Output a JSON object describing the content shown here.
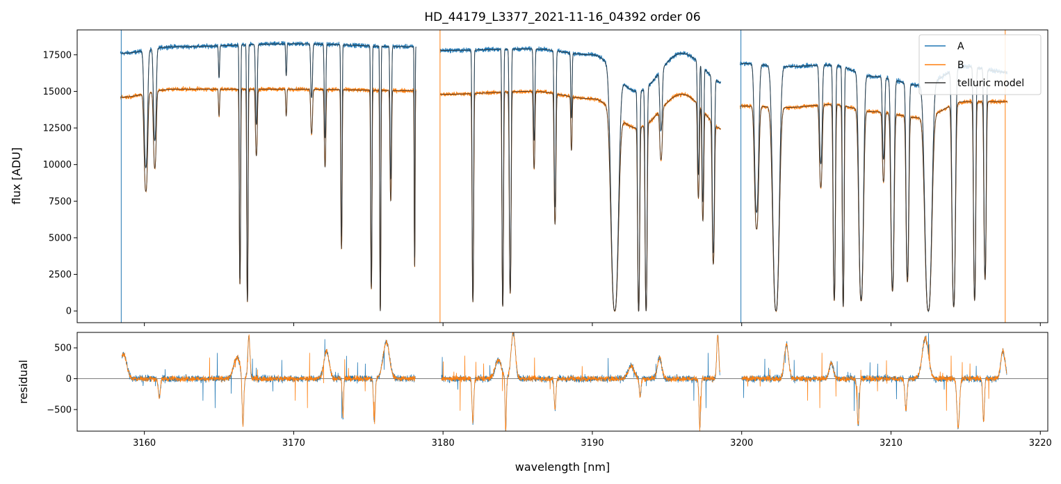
{
  "chart_data": {
    "type": "line",
    "title": "HD_44179_L3377_2021-11-16_04392  order 06",
    "xlabel": "wavelength [nm]",
    "xlim": [
      3155.5,
      3220.5
    ],
    "xticks": [
      3160,
      3170,
      3180,
      3190,
      3200,
      3210,
      3220
    ],
    "colors": {
      "A": "#1f77b4",
      "B": "#ff7f0e",
      "model": "#333333"
    },
    "legend": {
      "placement": "top-right",
      "entries": [
        "A",
        "B",
        "telluric model"
      ]
    },
    "panels": [
      {
        "name": "flux",
        "ylabel": "flux [ADU]",
        "ylim": [
          -800,
          19200
        ],
        "yticks": [
          0,
          2500,
          5000,
          7500,
          10000,
          12500,
          15000,
          17500
        ],
        "segments": [
          [
            3158.4,
            3178.2
          ],
          [
            3179.8,
            3198.6
          ],
          [
            3199.9,
            3217.8
          ]
        ],
        "continuum": {
          "A": [
            [
              3158.4,
              17600
            ],
            [
              3162,
              18050
            ],
            [
              3170,
              18250
            ],
            [
              3178,
              18050
            ],
            [
              3180,
              17800
            ],
            [
              3186,
              17900
            ],
            [
              3190,
              17500
            ],
            [
              3193,
              15000
            ],
            [
              3196,
              17600
            ],
            [
              3199,
              15500
            ],
            [
              3200,
              16900
            ],
            [
              3203,
              16700
            ],
            [
              3206,
              16800
            ],
            [
              3209,
              16000
            ],
            [
              3212,
              15400
            ],
            [
              3215,
              16700
            ],
            [
              3217.8,
              16300
            ]
          ],
          "B": [
            [
              3158.4,
              14600
            ],
            [
              3162,
              15150
            ],
            [
              3170,
              15150
            ],
            [
              3178,
              15050
            ],
            [
              3180,
              14800
            ],
            [
              3186,
              15000
            ],
            [
              3190,
              14500
            ],
            [
              3193,
              12500
            ],
            [
              3196,
              14800
            ],
            [
              3199,
              12300
            ],
            [
              3200,
              14000
            ],
            [
              3203,
              13900
            ],
            [
              3206,
              14100
            ],
            [
              3209,
              13600
            ],
            [
              3212,
              13200
            ],
            [
              3215,
              14300
            ],
            [
              3217.8,
              14300
            ]
          ]
        },
        "absorption_lines": [
          [
            3160.1,
            0.15,
            0.45
          ],
          [
            3160.7,
            0.12,
            0.35
          ],
          [
            3165.0,
            0.05,
            0.12
          ],
          [
            3166.4,
            0.06,
            0.88
          ],
          [
            3166.9,
            0.06,
            0.96
          ],
          [
            3167.5,
            0.08,
            0.3
          ],
          [
            3169.5,
            0.05,
            0.12
          ],
          [
            3171.2,
            0.08,
            0.2
          ],
          [
            3172.1,
            0.07,
            0.35
          ],
          [
            3173.2,
            0.06,
            0.72
          ],
          [
            3175.2,
            0.06,
            0.9
          ],
          [
            3175.8,
            0.05,
            1.02
          ],
          [
            3176.5,
            0.07,
            0.5
          ],
          [
            3178.1,
            0.04,
            0.8
          ],
          [
            3182.0,
            0.07,
            0.96
          ],
          [
            3184.0,
            0.07,
            0.98
          ],
          [
            3184.5,
            0.08,
            0.92
          ],
          [
            3186.1,
            0.07,
            0.35
          ],
          [
            3187.5,
            0.08,
            0.6
          ],
          [
            3188.6,
            0.06,
            0.25
          ],
          [
            3191.5,
            0.32,
            1.0
          ],
          [
            3193.1,
            0.09,
            1.0
          ],
          [
            3193.6,
            0.09,
            1.0
          ],
          [
            3194.6,
            0.11,
            0.25
          ],
          [
            3197.1,
            0.08,
            0.45
          ],
          [
            3197.4,
            0.08,
            0.55
          ],
          [
            3198.1,
            0.1,
            0.75
          ],
          [
            3201.0,
            0.18,
            0.6
          ],
          [
            3202.3,
            0.28,
            1.0
          ],
          [
            3205.3,
            0.12,
            0.4
          ],
          [
            3206.2,
            0.1,
            0.95
          ],
          [
            3206.8,
            0.08,
            0.98
          ],
          [
            3208.0,
            0.2,
            0.95
          ],
          [
            3209.5,
            0.1,
            0.35
          ],
          [
            3210.1,
            0.14,
            0.9
          ],
          [
            3211.1,
            0.12,
            0.85
          ],
          [
            3212.5,
            0.3,
            1.0
          ],
          [
            3214.2,
            0.15,
            0.98
          ],
          [
            3215.6,
            0.1,
            0.95
          ],
          [
            3216.3,
            0.1,
            0.85
          ]
        ],
        "spikes": [
          3158.45,
          3179.8,
          3199.95,
          3217.65
        ]
      },
      {
        "name": "residual",
        "ylabel": "residual",
        "ylim": [
          -850,
          750
        ],
        "yticks": [
          -500,
          0,
          500
        ],
        "zero_line": true,
        "features": [
          [
            3158.6,
            400,
            0.3
          ],
          [
            3161.0,
            -300,
            0.1
          ],
          [
            3166.2,
            350,
            0.3
          ],
          [
            3166.6,
            -800,
            0.08
          ],
          [
            3167.0,
            700,
            0.1
          ],
          [
            3172.2,
            450,
            0.25
          ],
          [
            3173.3,
            -600,
            0.06
          ],
          [
            3175.4,
            -700,
            0.08
          ],
          [
            3176.2,
            600,
            0.3
          ],
          [
            3182.0,
            -700,
            0.08
          ],
          [
            3183.7,
            300,
            0.3
          ],
          [
            3184.2,
            -850,
            0.06
          ],
          [
            3184.7,
            750,
            0.2
          ],
          [
            3187.5,
            -500,
            0.08
          ],
          [
            3192.6,
            200,
            0.3
          ],
          [
            3193.2,
            -300,
            0.08
          ],
          [
            3194.5,
            350,
            0.2
          ],
          [
            3197.2,
            -800,
            0.08
          ],
          [
            3198.4,
            700,
            0.1
          ],
          [
            3203.0,
            550,
            0.2
          ],
          [
            3206.0,
            250,
            0.2
          ],
          [
            3207.8,
            -750,
            0.1
          ],
          [
            3211.0,
            -500,
            0.1
          ],
          [
            3212.3,
            650,
            0.3
          ],
          [
            3214.5,
            -800,
            0.12
          ],
          [
            3216.2,
            -700,
            0.08
          ],
          [
            3217.5,
            450,
            0.2
          ]
        ]
      }
    ]
  }
}
